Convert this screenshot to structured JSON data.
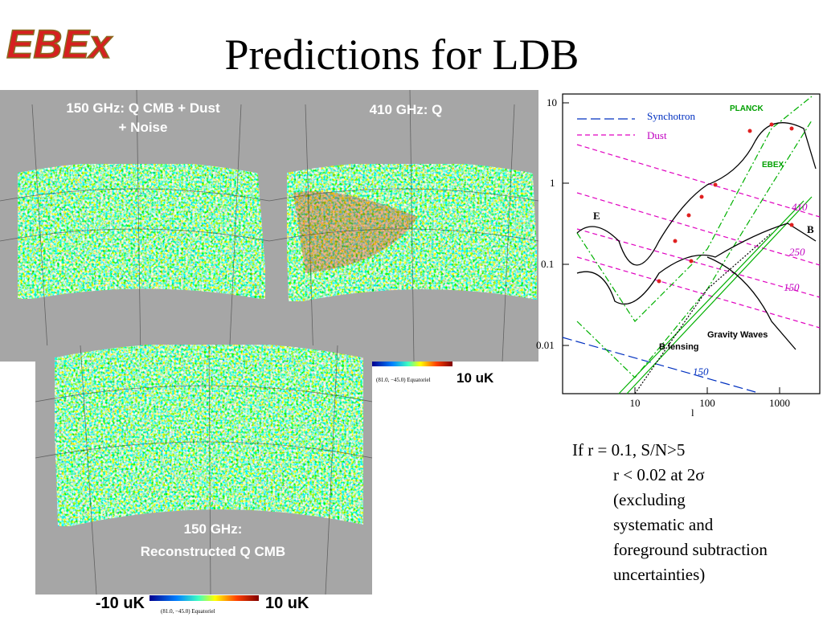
{
  "header": {
    "logo": "EBEx",
    "title": "Predictions for LDB"
  },
  "maps": [
    {
      "label_line1": "150 GHz: Q CMB + Dust",
      "label_line2": "+ Noise"
    },
    {
      "label_line1": "410 GHz: Q"
    },
    {
      "label_line1": "150 GHz:",
      "label_line2": "Reconstructed Q CMB"
    }
  ],
  "colorbars": [
    {
      "max": "10 uK",
      "caption": "(81.0, −45.0) Equatoriel"
    },
    {
      "min": "-10 uK",
      "max": "10 uK",
      "caption": "(81.0, −45.0) Equatoriel"
    }
  ],
  "plot": {
    "yticks": [
      "10",
      "1",
      "0.1",
      "0.01"
    ],
    "xticks": [
      "10",
      "100",
      "1000"
    ],
    "xlabel": "l",
    "labels": {
      "synchotron": "Synchotron",
      "dust": "Dust",
      "planck": "PLANCK",
      "ebex": "EBEX",
      "e": "E",
      "b": "B",
      "gw": "Gravity Waves",
      "lensing": "B lensing",
      "f410": "410",
      "f250": "250",
      "f150a": "150",
      "f150b": "150"
    }
  },
  "notes": [
    "If r = 0.1, S/N>5",
    "r < 0.02 at 2σ",
    "(excluding",
    "systematic and",
    "foreground subtraction",
    "uncertainties)"
  ]
}
